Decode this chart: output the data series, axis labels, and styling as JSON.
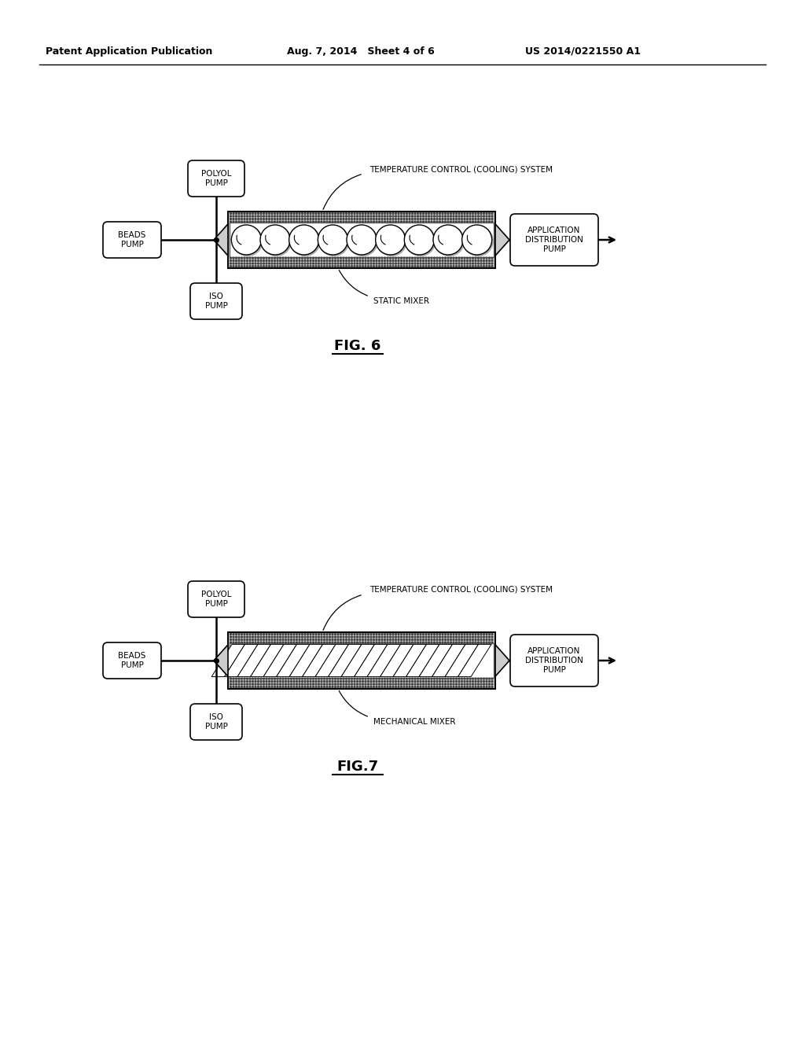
{
  "bg_color": "#ffffff",
  "header_left": "Patent Application Publication",
  "header_mid": "Aug. 7, 2014   Sheet 4 of 6",
  "header_right": "US 2014/0221550 A1",
  "fig6_label": "FIG. 6",
  "fig7_label": "FIG.7",
  "fig6_static_mixer_label": "STATIC MIXER",
  "fig7_mechanical_mixer_label": "MECHANICAL MIXER",
  "temp_control_label": "TEMPERATURE CONTROL (COOLING) SYSTEM",
  "polyol_pump_label": "POLYOL\nPUMP",
  "beads_pump_label": "BEADS\nPUMP",
  "iso_pump_label": "ISO\nPUMP",
  "app_dist_pump_label": "APPLICATION\nDISTRIBUTION\nPUMP"
}
